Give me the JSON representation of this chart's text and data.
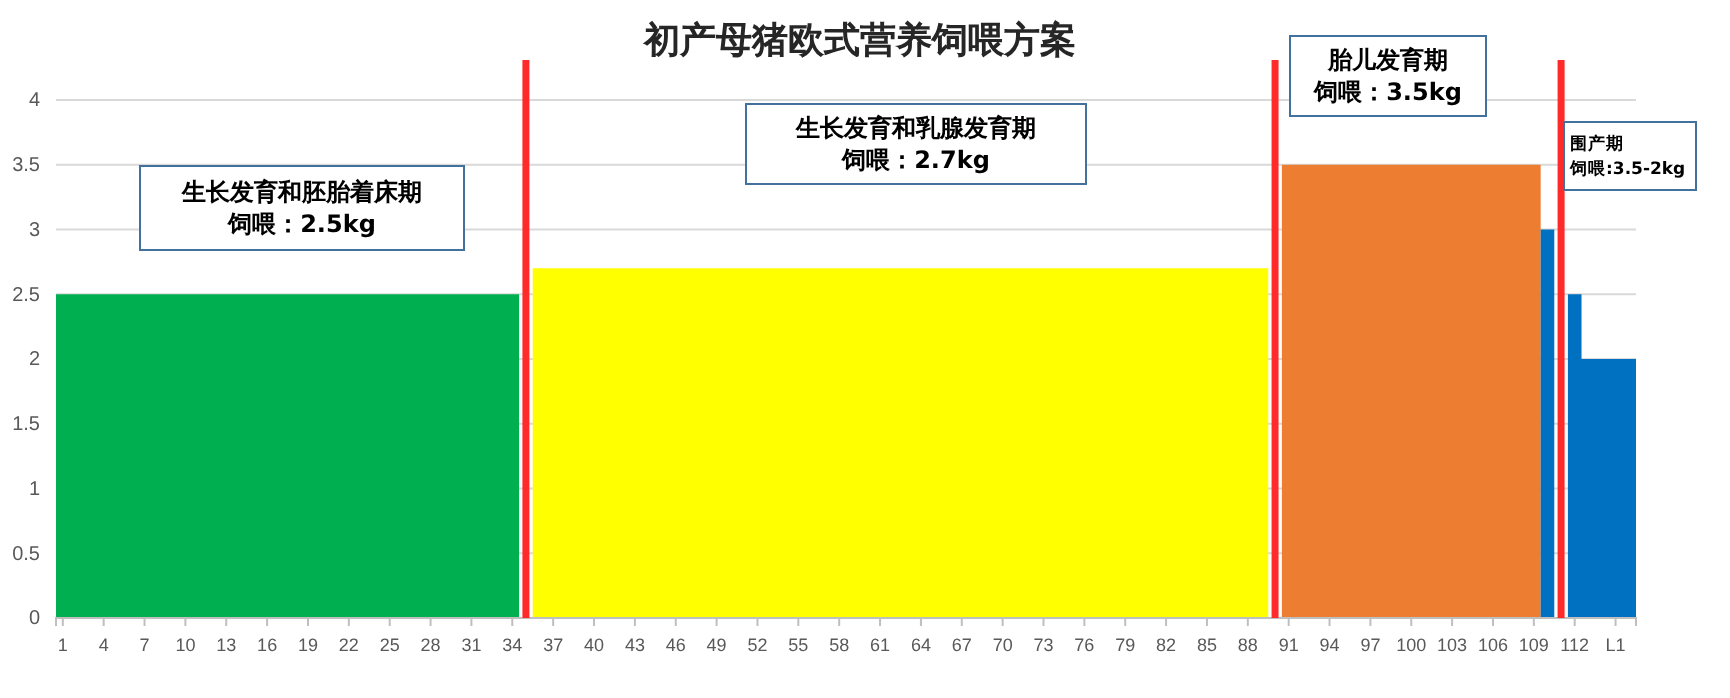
{
  "chart_data": {
    "type": "area",
    "title": "初产母猪欧式营养饲喂方案",
    "series": [
      {
        "color": "#00b050",
        "x": [
          0.5,
          34.5
        ],
        "values": [
          2.5,
          2.5
        ]
      },
      {
        "color": "#ffff00",
        "x": [
          35.5,
          89.5
        ],
        "values": [
          2.7,
          2.7
        ]
      },
      {
        "color": "#ed7d31",
        "x": [
          90.5,
          109.5
        ],
        "values": [
          3.5,
          3.5
        ]
      },
      {
        "color": "#0070c0",
        "x": [
          109.5,
          110.5,
          111,
          111.5,
          112.5,
          112.5,
          116.5
        ],
        "values": [
          3,
          3,
          null,
          2.5,
          2.5,
          2,
          2
        ]
      }
    ],
    "xlim": [
      0.5,
      116.5
    ],
    "xticks": [
      1,
      4,
      7,
      10,
      13,
      16,
      19,
      22,
      25,
      28,
      31,
      34,
      37,
      40,
      43,
      46,
      49,
      52,
      55,
      58,
      61,
      64,
      67,
      70,
      73,
      76,
      79,
      82,
      85,
      88,
      91,
      94,
      97,
      100,
      103,
      106,
      109,
      112,
      {
        "value": 115,
        "label": "L1"
      }
    ],
    "ylim": [
      0,
      4
    ],
    "yticks": [
      0,
      0.5,
      1,
      1.5,
      2,
      2.5,
      3,
      3.5,
      4
    ],
    "grid": "y",
    "ref_lines": [
      {
        "axis": "x",
        "value": 35,
        "color": "#ff2a2a"
      },
      {
        "axis": "x",
        "value": 90,
        "color": "#ff2a2a"
      },
      {
        "axis": "x",
        "value": 111,
        "color": "#ff2a2a"
      }
    ],
    "annotations": [
      "生长发育和胚胎着床期",
      "饲喂：2.5kg",
      "生长发育和乳腺发育期",
      "饲喂：2.7kg",
      "胎儿发育期",
      "饲喂：3.5kg",
      "围产期",
      "饲喂:3.5-2kg"
    ]
  }
}
